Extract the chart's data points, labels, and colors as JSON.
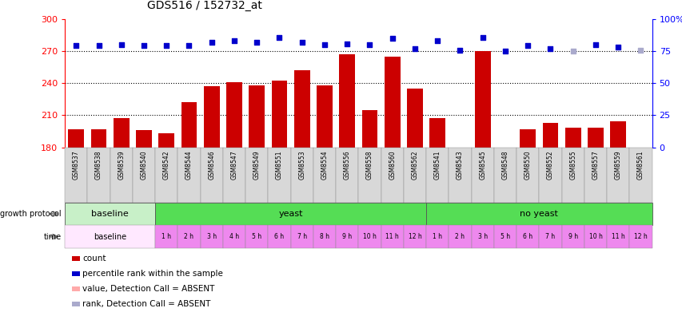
{
  "title": "GDS516 / 152732_at",
  "samples": [
    "GSM8537",
    "GSM8538",
    "GSM8539",
    "GSM8540",
    "GSM8542",
    "GSM8544",
    "GSM8546",
    "GSM8547",
    "GSM8549",
    "GSM8551",
    "GSM8553",
    "GSM8554",
    "GSM8556",
    "GSM8558",
    "GSM8560",
    "GSM8562",
    "GSM8541",
    "GSM8543",
    "GSM8545",
    "GSM8548",
    "GSM8550",
    "GSM8552",
    "GSM8555",
    "GSM8557",
    "GSM8559",
    "GSM8561"
  ],
  "count_values": [
    197,
    197,
    207,
    196,
    193,
    222,
    237,
    241,
    238,
    242,
    252,
    238,
    267,
    215,
    265,
    235,
    207,
    180,
    270,
    180,
    197,
    203,
    198,
    198,
    204,
    180
  ],
  "count_absent": [
    false,
    false,
    false,
    false,
    false,
    false,
    false,
    false,
    false,
    false,
    false,
    false,
    false,
    false,
    false,
    false,
    false,
    true,
    false,
    true,
    false,
    false,
    false,
    false,
    false,
    true
  ],
  "rank_values": [
    275,
    275,
    276,
    275,
    275,
    275,
    278,
    280,
    278,
    283,
    278,
    276,
    277,
    276,
    282,
    272,
    280,
    271,
    283,
    270,
    275,
    272,
    270,
    276,
    274,
    271
  ],
  "rank_absent": [
    false,
    false,
    false,
    false,
    false,
    false,
    false,
    false,
    false,
    false,
    false,
    false,
    false,
    false,
    false,
    false,
    false,
    false,
    false,
    false,
    false,
    false,
    true,
    false,
    false,
    true
  ],
  "baseline_indices": [
    0,
    1,
    2,
    3
  ],
  "yeast_indices": [
    4,
    5,
    6,
    7,
    8,
    9,
    10,
    11,
    12,
    13,
    14,
    15
  ],
  "no_yeast_indices": [
    16,
    17,
    18,
    19,
    20,
    21,
    22,
    23,
    24,
    25
  ],
  "baseline_group_color": "#c8f0c8",
  "yeast_group_color": "#55dd55",
  "no_yeast_group_color": "#55dd55",
  "baseline_time_color": "#ffe8ff",
  "yeast_time_color": "#ee88ee",
  "no_yeast_time_color": "#ee88ee",
  "baseline_time_label": "baseline",
  "yeast_times": [
    "1 h",
    "2 h",
    "3 h",
    "4 h",
    "5 h",
    "6 h",
    "7 h",
    "8 h",
    "9 h",
    "10 h",
    "11 h",
    "12 h"
  ],
  "no_yeast_times": [
    "1 h",
    "2 h",
    "3 h",
    "5 h",
    "6 h",
    "7 h",
    "9 h",
    "10 h",
    "11 h",
    "12 h"
  ],
  "ylim_left": [
    180,
    300
  ],
  "ylim_right": [
    0,
    100
  ],
  "yticks_left": [
    180,
    210,
    240,
    270,
    300
  ],
  "yticks_right": [
    0,
    25,
    50,
    75,
    100
  ],
  "hlines": [
    210,
    240,
    270
  ],
  "bar_color_red": "#cc0000",
  "bar_color_pink": "#ffaaaa",
  "dot_color_blue": "#0000cc",
  "dot_color_lightblue": "#aaaacc",
  "sample_bg_color": "#d8d8d8",
  "legend_items": [
    {
      "color": "#cc0000",
      "label": "count"
    },
    {
      "color": "#0000cc",
      "label": "percentile rank within the sample"
    },
    {
      "color": "#ffaaaa",
      "label": "value, Detection Call = ABSENT"
    },
    {
      "color": "#aaaacc",
      "label": "rank, Detection Call = ABSENT"
    }
  ]
}
